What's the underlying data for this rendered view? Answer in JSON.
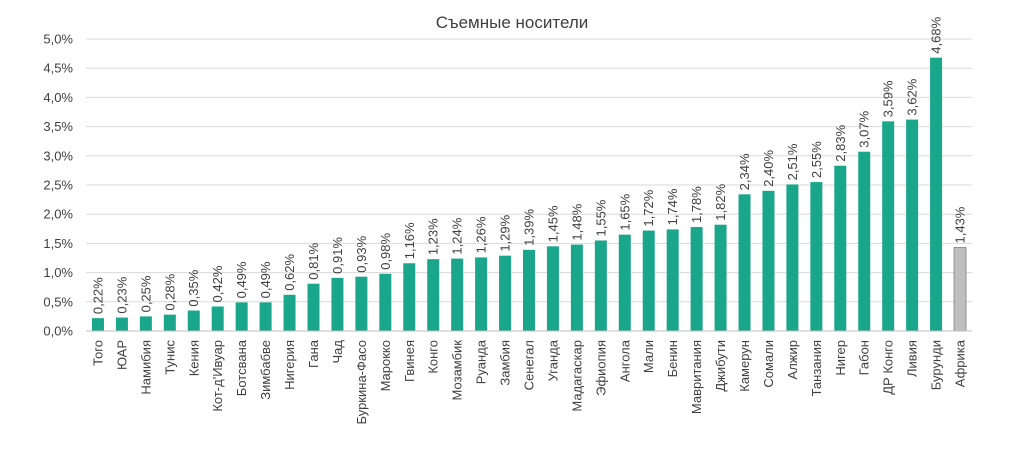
{
  "chart_data": {
    "type": "bar",
    "title": "Съемные носители",
    "xlabel": "",
    "ylabel": "",
    "ylim": [
      0,
      5.0
    ],
    "yticks": [
      "0,0%",
      "0,5%",
      "1,0%",
      "1,5%",
      "2,0%",
      "2,5%",
      "3,0%",
      "3,5%",
      "4,0%",
      "4,5%",
      "5,0%"
    ],
    "grid": true,
    "legend": "none",
    "colors": {
      "bar": "#1aa68b",
      "highlight": "#bfbfbf"
    },
    "categories": [
      "Того",
      "ЮАР",
      "Намибия",
      "Тунис",
      "Кения",
      "Кот-д'Ивуар",
      "Ботсвана",
      "Зимбабве",
      "Нигерия",
      "Гана",
      "Чад",
      "Буркина-Фасо",
      "Марокко",
      "Гвинея",
      "Конго",
      "Мозамбик",
      "Руанда",
      "Замбия",
      "Сенегал",
      "Уганда",
      "Мадагаскар",
      "Эфиопия",
      "Ангола",
      "Мали",
      "Бенин",
      "Мавритания",
      "Джибути",
      "Камерун",
      "Сомали",
      "Алжир",
      "Танзания",
      "Нигер",
      "Габон",
      "ДР Конго",
      "Ливия",
      "Бурунди",
      "Африка"
    ],
    "values": [
      0.22,
      0.23,
      0.25,
      0.28,
      0.35,
      0.42,
      0.49,
      0.49,
      0.62,
      0.81,
      0.91,
      0.93,
      0.98,
      1.16,
      1.23,
      1.24,
      1.26,
      1.29,
      1.39,
      1.45,
      1.48,
      1.55,
      1.65,
      1.72,
      1.74,
      1.78,
      1.82,
      2.34,
      2.4,
      2.51,
      2.55,
      2.83,
      3.07,
      3.59,
      3.62,
      4.68,
      1.43
    ],
    "data_labels": [
      "0,22%",
      "0,23%",
      "0,25%",
      "0,28%",
      "0,35%",
      "0,42%",
      "0,49%",
      "0,49%",
      "0,62%",
      "0,81%",
      "0,91%",
      "0,93%",
      "0,98%",
      "1,16%",
      "1,23%",
      "1,24%",
      "1,26%",
      "1,29%",
      "1,39%",
      "1,45%",
      "1,48%",
      "1,55%",
      "1,65%",
      "1,72%",
      "1,74%",
      "1,78%",
      "1,82%",
      "2,34%",
      "2,40%",
      "2,51%",
      "2,55%",
      "2,83%",
      "3,07%",
      "3,59%",
      "3,62%",
      "4,68%",
      "1,43%"
    ],
    "highlight_category": "Африка"
  }
}
